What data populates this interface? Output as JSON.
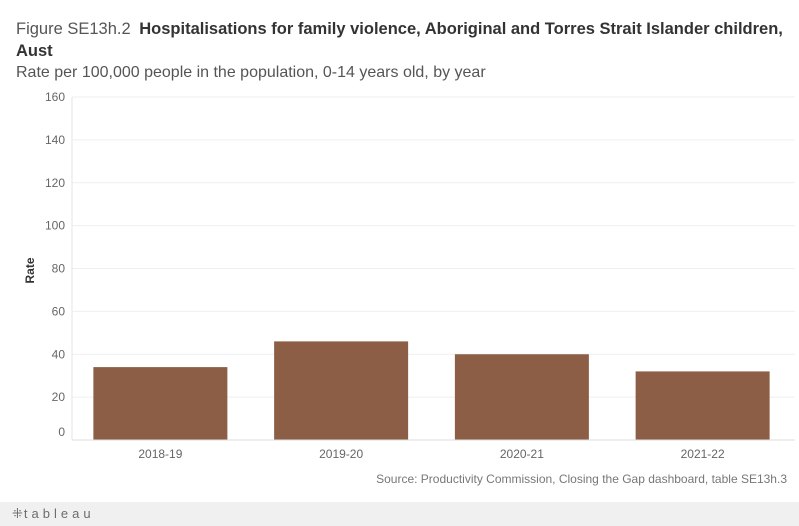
{
  "figure": {
    "label": "Figure SE13h.2",
    "title": "Hospitalisations for family violence, Aboriginal and Torres Strait Islander children, Aust",
    "subtitle": "Rate per 100,000 people in the population, 0-14 years old, by year"
  },
  "source": "Source: Productivity Commission, Closing the Gap dashboard, table SE13h.3",
  "footer": {
    "logo_text": "tableau",
    "logo_icon": "tableau-plus-icon"
  },
  "chart_data": {
    "type": "bar",
    "title": "Hospitalisations for family violence, Aboriginal and Torres Strait Islander children, Aust",
    "subtitle": "Rate per 100,000 people in the population, 0-14 years old, by year",
    "xlabel": "",
    "ylabel": "Rate",
    "categories": [
      "2018-19",
      "2019-20",
      "2020-21",
      "2021-22"
    ],
    "values": [
      34,
      46,
      40,
      32
    ],
    "ylim": [
      0,
      160
    ],
    "yticks": [
      0,
      20,
      40,
      60,
      80,
      100,
      120,
      140,
      160
    ],
    "grid": true,
    "bar_color": "#8b5e45"
  }
}
